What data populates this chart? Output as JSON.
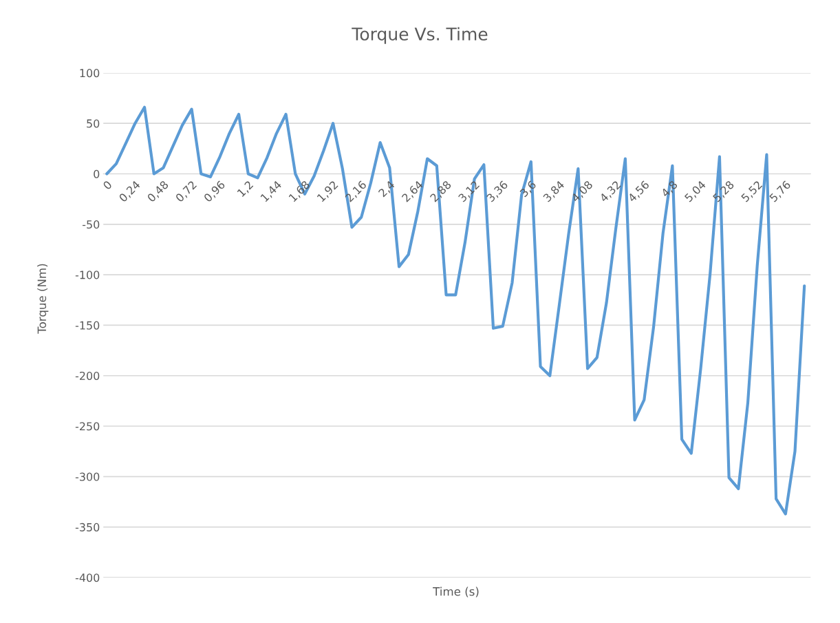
{
  "chart_data": {
    "type": "line",
    "title": "Torque Vs. Time",
    "xlabel": "Time (s)",
    "ylabel": "Torque (Nm)",
    "categories": [
      "0",
      null,
      null,
      "0,24",
      null,
      null,
      "0,48",
      null,
      null,
      "0,72",
      null,
      null,
      "0,96",
      null,
      null,
      "1,2",
      null,
      null,
      "1,44",
      null,
      null,
      "1,68",
      null,
      null,
      "1,92",
      null,
      null,
      "2,16",
      null,
      null,
      "2,4",
      null,
      null,
      "2,64",
      null,
      null,
      "2,88",
      null,
      null,
      "3,12",
      null,
      null,
      "3,36",
      null,
      null,
      "3,6",
      null,
      null,
      "3,84",
      null,
      null,
      "4,08",
      null,
      null,
      "4,32",
      null,
      null,
      "4,56",
      null,
      null,
      "4,8",
      null,
      null,
      "5,04",
      null,
      null,
      "5,28",
      null,
      null,
      "5,52",
      null,
      null,
      "5,76",
      null,
      null
    ],
    "series": [
      {
        "color": "#5b9bd5",
        "values": [
          0,
          10,
          30,
          50,
          66,
          0,
          6,
          27,
          48,
          64,
          0,
          -3,
          17,
          40,
          59,
          0,
          -4,
          16,
          40,
          59,
          0,
          -20,
          -2,
          23,
          50,
          5,
          -53,
          -43,
          -9,
          31,
          6,
          -92,
          -80,
          -37,
          15,
          8,
          -120,
          -120,
          -68,
          -5,
          9,
          -153,
          -151,
          -108,
          -21,
          12,
          -191,
          -200,
          -130,
          -59,
          5,
          -193,
          -182,
          -128,
          -54,
          15,
          -244,
          -224,
          -152,
          -59,
          8,
          -263,
          -277,
          -193,
          -99,
          17,
          -301,
          -312,
          -227,
          -91,
          19,
          -322,
          -337,
          -275,
          -111
        ]
      }
    ],
    "ylim": [
      -400,
      100
    ],
    "yticks": [
      -400,
      -350,
      -300,
      -250,
      -200,
      -150,
      -100,
      -50,
      0,
      50,
      100
    ],
    "grid": "y",
    "marker": "none",
    "line_style": "solid"
  }
}
